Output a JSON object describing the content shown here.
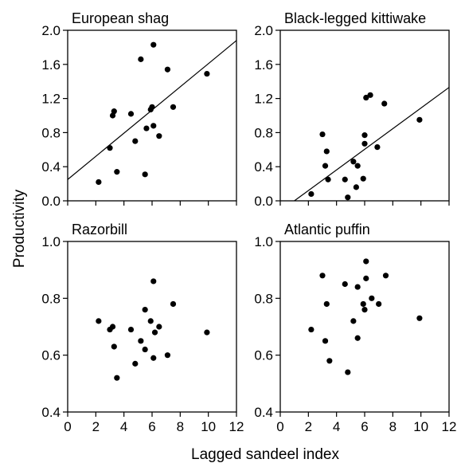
{
  "figure": {
    "xlabel": "Lagged sandeel index",
    "ylabel": "Productivity"
  },
  "chart_data": [
    {
      "type": "scatter",
      "title": "European shag",
      "xlim": [
        0,
        12
      ],
      "ylim": [
        0,
        2.0
      ],
      "xticks": [
        "0",
        "2",
        "4",
        "6",
        "8",
        "10",
        "12"
      ],
      "yticks": [
        "0.0",
        "0.4",
        "0.8",
        "1.2",
        "1.6",
        "2.0"
      ],
      "trendline": [
        [
          0,
          0.25
        ],
        [
          12,
          1.88
        ]
      ],
      "points": [
        [
          2.2,
          0.22
        ],
        [
          3.0,
          0.62
        ],
        [
          3.2,
          1.0
        ],
        [
          3.3,
          1.05
        ],
        [
          3.5,
          0.34
        ],
        [
          4.5,
          1.02
        ],
        [
          4.8,
          0.7
        ],
        [
          5.2,
          1.66
        ],
        [
          5.5,
          0.31
        ],
        [
          5.6,
          0.85
        ],
        [
          5.9,
          1.07
        ],
        [
          6.0,
          1.1
        ],
        [
          6.1,
          1.83
        ],
        [
          6.1,
          0.88
        ],
        [
          6.5,
          0.76
        ],
        [
          7.1,
          1.54
        ],
        [
          7.5,
          1.1
        ],
        [
          9.9,
          1.49
        ]
      ]
    },
    {
      "type": "scatter",
      "title": "Black-legged kittiwake",
      "xlim": [
        0,
        12
      ],
      "ylim": [
        0,
        2.0
      ],
      "xticks": [
        "0",
        "2",
        "4",
        "6",
        "8",
        "10",
        "12"
      ],
      "yticks": [
        "0.0",
        "0.4",
        "0.8",
        "1.2",
        "1.6",
        "2.0"
      ],
      "trendline": [
        [
          1.0,
          0.0
        ],
        [
          12,
          1.33
        ]
      ],
      "points": [
        [
          2.2,
          0.08
        ],
        [
          3.0,
          0.78
        ],
        [
          3.2,
          0.41
        ],
        [
          3.3,
          0.58
        ],
        [
          3.4,
          0.25
        ],
        [
          4.6,
          0.25
        ],
        [
          4.8,
          0.04
        ],
        [
          5.2,
          0.46
        ],
        [
          5.4,
          0.16
        ],
        [
          5.5,
          0.41
        ],
        [
          5.9,
          0.26
        ],
        [
          6.0,
          0.67
        ],
        [
          6.0,
          0.77
        ],
        [
          6.1,
          1.21
        ],
        [
          6.4,
          1.24
        ],
        [
          6.9,
          0.63
        ],
        [
          7.4,
          1.14
        ],
        [
          9.9,
          0.95
        ]
      ]
    },
    {
      "type": "scatter",
      "title": "Razorbill",
      "xlim": [
        0,
        12
      ],
      "ylim": [
        0.4,
        1.0
      ],
      "xticks": [
        "0",
        "2",
        "4",
        "6",
        "8",
        "10",
        "12"
      ],
      "yticks": [
        "0.4",
        "0.6",
        "0.8",
        "1.0"
      ],
      "points": [
        [
          2.2,
          0.72
        ],
        [
          3.0,
          0.69
        ],
        [
          3.2,
          0.7
        ],
        [
          3.3,
          0.63
        ],
        [
          3.5,
          0.52
        ],
        [
          4.5,
          0.69
        ],
        [
          4.8,
          0.57
        ],
        [
          5.2,
          0.65
        ],
        [
          5.5,
          0.76
        ],
        [
          5.5,
          0.62
        ],
        [
          5.9,
          0.72
        ],
        [
          6.1,
          0.86
        ],
        [
          6.1,
          0.59
        ],
        [
          6.2,
          0.68
        ],
        [
          6.5,
          0.7
        ],
        [
          7.1,
          0.6
        ],
        [
          7.5,
          0.78
        ],
        [
          9.9,
          0.68
        ]
      ]
    },
    {
      "type": "scatter",
      "title": "Atlantic puffin",
      "xlim": [
        0,
        12
      ],
      "ylim": [
        0.4,
        1.0
      ],
      "xticks": [
        "0",
        "2",
        "4",
        "6",
        "8",
        "10",
        "12"
      ],
      "yticks": [
        "0.4",
        "0.6",
        "0.8",
        "1.0"
      ],
      "points": [
        [
          2.2,
          0.69
        ],
        [
          3.0,
          0.88
        ],
        [
          3.2,
          0.65
        ],
        [
          3.3,
          0.78
        ],
        [
          3.5,
          0.58
        ],
        [
          4.6,
          0.85
        ],
        [
          4.8,
          0.54
        ],
        [
          5.2,
          0.72
        ],
        [
          5.5,
          0.66
        ],
        [
          5.5,
          0.84
        ],
        [
          5.9,
          0.78
        ],
        [
          6.0,
          0.76
        ],
        [
          6.1,
          0.87
        ],
        [
          6.1,
          0.93
        ],
        [
          6.5,
          0.8
        ],
        [
          7.0,
          0.78
        ],
        [
          7.5,
          0.88
        ],
        [
          9.9,
          0.73
        ]
      ]
    }
  ]
}
